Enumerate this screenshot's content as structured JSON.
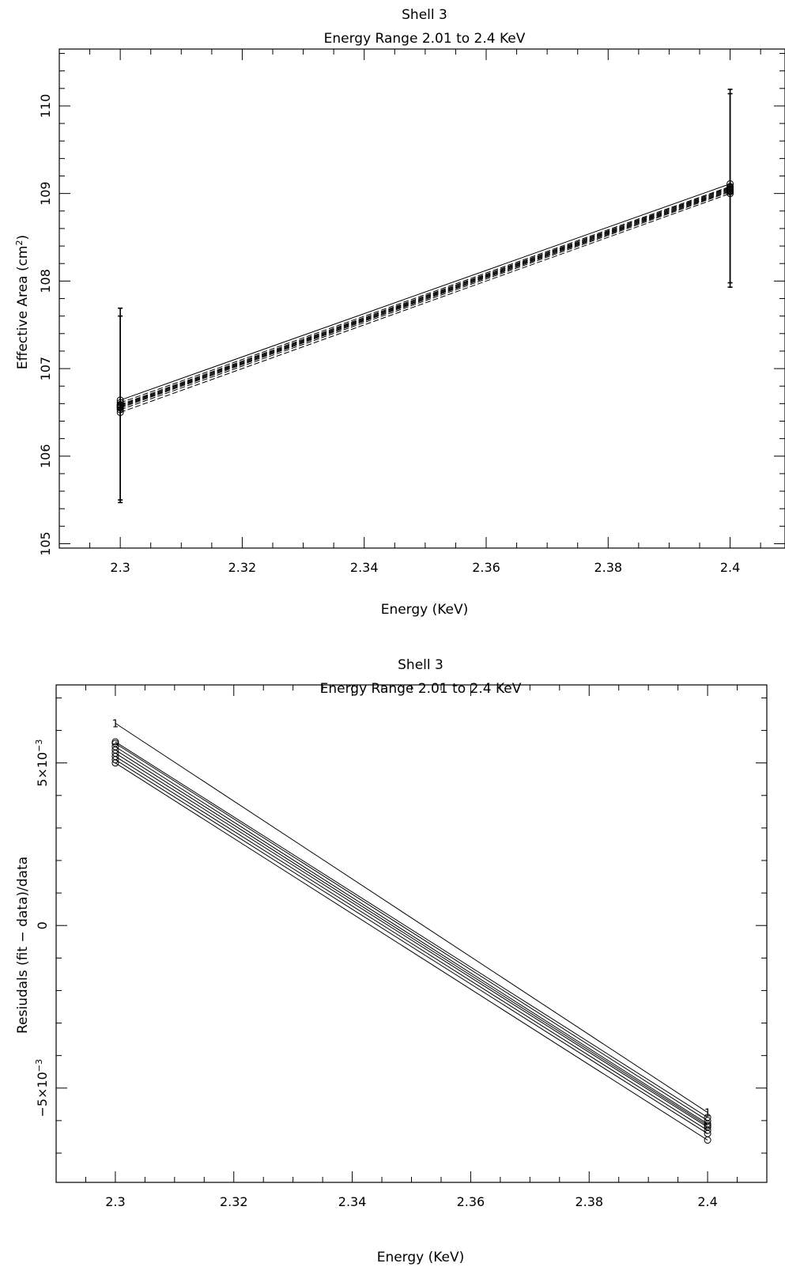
{
  "chart_data": [
    {
      "type": "line",
      "title": "Shell 3",
      "subtitle": "Energy Range 2.01 to 2.4 KeV",
      "xlabel": "Energy (KeV)",
      "ylabel": "Effective Area (cm²)",
      "xlim": [
        2.29,
        2.409
      ],
      "ylim": [
        104.95,
        110.65
      ],
      "grid": false,
      "x_ticks": [
        {
          "v": 2.3,
          "label": "2.3"
        },
        {
          "v": 2.32,
          "label": "2.32"
        },
        {
          "v": 2.34,
          "label": "2.34"
        },
        {
          "v": 2.36,
          "label": "2.36"
        },
        {
          "v": 2.38,
          "label": "2.38"
        },
        {
          "v": 2.4,
          "label": "2.4"
        }
      ],
      "y_ticks": [
        {
          "v": 105,
          "label": "105"
        },
        {
          "v": 106,
          "label": "106"
        },
        {
          "v": 107,
          "label": "107"
        },
        {
          "v": 108,
          "label": "108"
        },
        {
          "v": 109,
          "label": "109"
        },
        {
          "v": 110,
          "label": "110"
        }
      ],
      "error_bars": [
        {
          "x": 2.3,
          "low": 105.47,
          "high": 107.69
        },
        {
          "x": 2.3,
          "low": 105.5,
          "high": 107.6
        },
        {
          "x": 2.4,
          "low": 107.93,
          "high": 110.19
        },
        {
          "x": 2.4,
          "low": 107.98,
          "high": 110.14
        }
      ],
      "series": [
        {
          "x": [
            2.3,
            2.4
          ],
          "y": [
            106.64,
            109.11
          ],
          "style": "solid"
        },
        {
          "x": [
            2.3,
            2.4
          ],
          "y": [
            106.61,
            109.08
          ],
          "style": "dashed"
        },
        {
          "x": [
            2.3,
            2.4
          ],
          "y": [
            106.59,
            109.07
          ],
          "style": "dashed"
        },
        {
          "x": [
            2.3,
            2.4
          ],
          "y": [
            106.58,
            109.06
          ],
          "style": "dashed"
        },
        {
          "x": [
            2.3,
            2.4
          ],
          "y": [
            106.57,
            109.05
          ],
          "style": "dashed"
        },
        {
          "x": [
            2.3,
            2.4
          ],
          "y": [
            106.56,
            109.04
          ],
          "style": "dashed"
        },
        {
          "x": [
            2.3,
            2.4
          ],
          "y": [
            106.55,
            109.03
          ],
          "style": "dashed"
        },
        {
          "x": [
            2.3,
            2.4
          ],
          "y": [
            106.53,
            109.02
          ],
          "style": "dashed"
        },
        {
          "x": [
            2.3,
            2.4
          ],
          "y": [
            106.5,
            109.0
          ],
          "style": "dashed"
        }
      ]
    },
    {
      "type": "line",
      "title": "Shell 3",
      "subtitle": "Energy Range 2.01 to 2.4 KeV",
      "xlabel": "Energy (KeV)",
      "ylabel": "Resiudals (fit − data)/data",
      "xlim": [
        2.29,
        2.41
      ],
      "ylim": [
        -0.0079,
        0.0074
      ],
      "grid": false,
      "x_ticks": [
        {
          "v": 2.3,
          "label": "2.3"
        },
        {
          "v": 2.32,
          "label": "2.32"
        },
        {
          "v": 2.34,
          "label": "2.34"
        },
        {
          "v": 2.36,
          "label": "2.36"
        },
        {
          "v": 2.38,
          "label": "2.38"
        },
        {
          "v": 2.4,
          "label": "2.4"
        }
      ],
      "y_ticks": [
        {
          "v": 0.005,
          "label": "5×10",
          "exp": "−3"
        },
        {
          "v": 0,
          "label": "0",
          "exp": ""
        },
        {
          "v": -0.005,
          "label": "−5×10",
          "exp": "−3"
        }
      ],
      "series": [
        {
          "x": [
            2.3,
            2.4
          ],
          "y": [
            0.00622,
            -0.00575
          ],
          "marker_label": "1"
        },
        {
          "x": [
            2.3,
            2.4
          ],
          "y": [
            0.00565,
            -0.0059
          ]
        },
        {
          "x": [
            2.3,
            2.4
          ],
          "y": [
            0.0056,
            -0.006
          ]
        },
        {
          "x": [
            2.3,
            2.4
          ],
          "y": [
            0.0055,
            -0.0061
          ]
        },
        {
          "x": [
            2.3,
            2.4
          ],
          "y": [
            0.0054,
            -0.00615
          ]
        },
        {
          "x": [
            2.3,
            2.4
          ],
          "y": [
            0.0053,
            -0.0062
          ]
        },
        {
          "x": [
            2.3,
            2.4
          ],
          "y": [
            0.0052,
            -0.0063
          ]
        },
        {
          "x": [
            2.3,
            2.4
          ],
          "y": [
            0.0051,
            -0.0064
          ]
        },
        {
          "x": [
            2.3,
            2.4
          ],
          "y": [
            0.005,
            -0.0066
          ]
        }
      ]
    }
  ]
}
